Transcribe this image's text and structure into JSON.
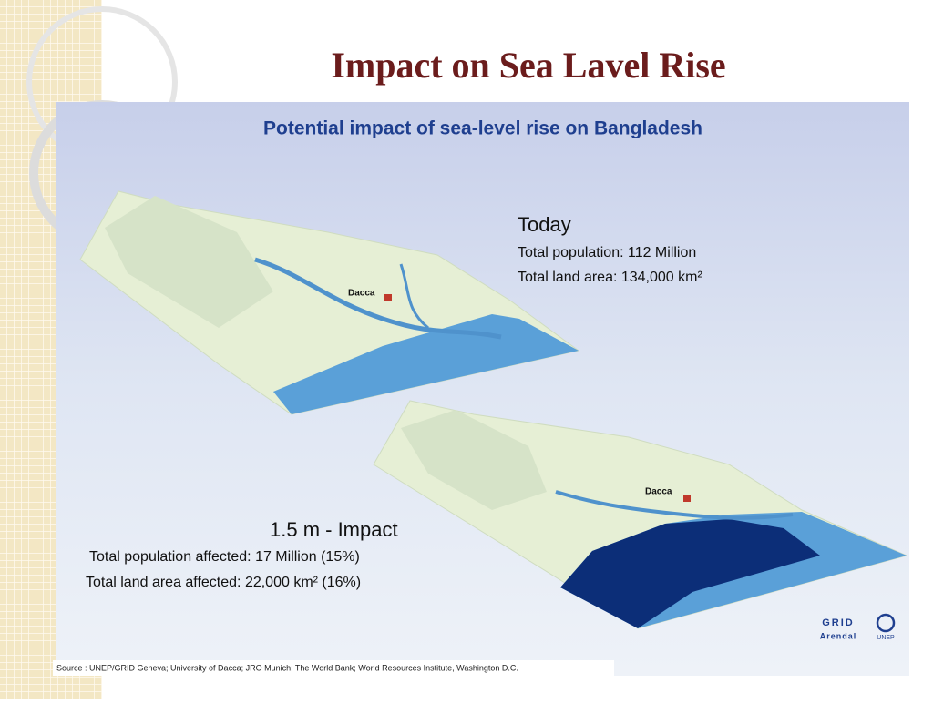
{
  "slide": {
    "title": "Impact on Sea Lavel Rise"
  },
  "figure": {
    "title": "Potential impact of sea-level rise on Bangladesh",
    "today": {
      "heading": "Today",
      "population": "Total population: 112 Million",
      "land_area": "Total land area: 134,000 km²",
      "city": "Dacca"
    },
    "impact": {
      "heading": "1.5 m - Impact",
      "population": "Total population affected: 17 Million (15%)",
      "land_area": "Total land area affected: 22,000 km² (16%)",
      "city": "Dacca"
    },
    "logos": {
      "grid": "GRID",
      "arendal": "Arendal",
      "unep": "UNEP"
    },
    "source": "Source : UNEP/GRID Geneva; University of Dacca; JRO Munich; The World Bank; World Resources Institute,  Washington D.C."
  }
}
